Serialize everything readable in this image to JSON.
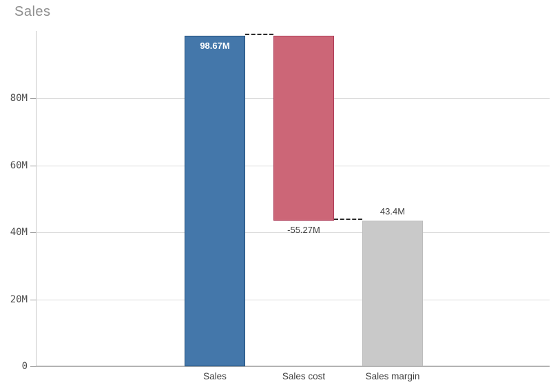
{
  "title": "Sales",
  "colors": {
    "background": "#ffffff",
    "title_text": "#8d8d8d",
    "axis_baseline": "#b3b3b3",
    "y_axis_line": "#c6c6c6",
    "gridline": "#d9d9d9",
    "tick_mark": "#999999",
    "tick_label_text": "#4d4d4d",
    "category_label_text": "#404040",
    "connector_line": "#2a2a2a",
    "bar_positive": "#4477aa",
    "bar_negative": "#cc6677",
    "bar_total": "#c9c9c9"
  },
  "chart_data": {
    "type": "bar",
    "subtype": "waterfall",
    "title": "Sales",
    "xlabel": "",
    "ylabel": "",
    "grid": true,
    "legend": false,
    "categories": [
      "Sales",
      "Sales cost",
      "Sales margin"
    ],
    "bars": [
      {
        "category": "Sales",
        "value": 98.67,
        "display_value": "98.67M",
        "start": 0,
        "end": 98.67,
        "role": "increase",
        "fill": "#4477aa",
        "border": "#1c4a78",
        "label_placement": "inside-top",
        "label_color": "#ffffff"
      },
      {
        "category": "Sales cost",
        "value": -55.27,
        "display_value": "-55.27M",
        "start": 98.67,
        "end": 43.4,
        "role": "decrease",
        "fill": "#cc6677",
        "border": "#ad3a56",
        "label_placement": "below",
        "label_color": "#404040"
      },
      {
        "category": "Sales margin",
        "value": 43.4,
        "display_value": "43.4M",
        "start": 0,
        "end": 43.4,
        "role": "total",
        "fill": "#c9c9c9",
        "border": "#bcbcbc",
        "label_placement": "above",
        "label_color": "#404040"
      }
    ],
    "connectors": [
      {
        "from": 0,
        "to": 1,
        "value": 98.67
      },
      {
        "from": 1,
        "to": 2,
        "value": 43.4
      }
    ],
    "y_axis": {
      "min": 0,
      "max": 100,
      "unit": "M",
      "ticks": [
        {
          "value": 0,
          "label": "0"
        },
        {
          "value": 20,
          "label": "20M"
        },
        {
          "value": 40,
          "label": "40M"
        },
        {
          "value": 60,
          "label": "60M"
        },
        {
          "value": 80,
          "label": "80M"
        }
      ]
    }
  }
}
